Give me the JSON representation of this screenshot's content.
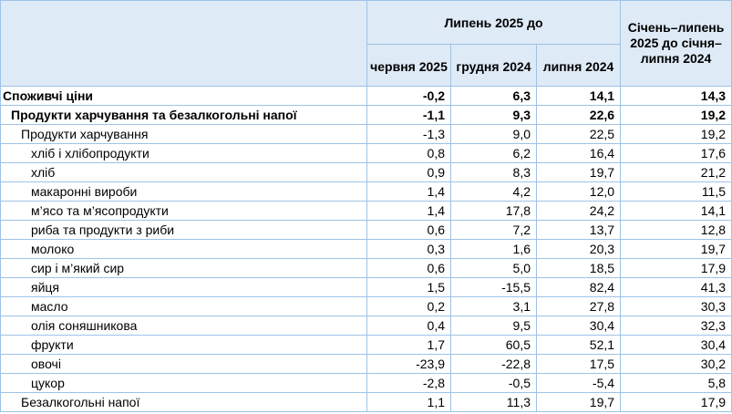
{
  "header": {
    "group_label": "Липень 2025 до",
    "ytd_label": "Січень–липень 2025 до січня–липня 2024",
    "col_june": "червня 2025",
    "col_dec": "грудня 2024",
    "col_july": "липня 2024"
  },
  "rows": [
    {
      "label": "Споживчі ціни",
      "level": 0,
      "v": [
        "-0,2",
        "6,3",
        "14,1",
        "14,3"
      ]
    },
    {
      "label": "Продукти харчування та безалкогольні напої",
      "level": 1,
      "v": [
        "-1,1",
        "9,3",
        "22,6",
        "19,2"
      ]
    },
    {
      "label": "Продукти харчування",
      "level": 2,
      "v": [
        "-1,3",
        "9,0",
        "22,5",
        "19,2"
      ]
    },
    {
      "label": "хліб і хлібопродукти",
      "level": 3,
      "v": [
        "0,8",
        "6,2",
        "16,4",
        "17,6"
      ]
    },
    {
      "label": "хліб",
      "level": 3,
      "v": [
        "0,9",
        "8,3",
        "19,7",
        "21,2"
      ]
    },
    {
      "label": "макаронні вироби",
      "level": 3,
      "v": [
        "1,4",
        "4,2",
        "12,0",
        "11,5"
      ]
    },
    {
      "label": "м’ясо та м’ясопродукти",
      "level": 3,
      "v": [
        "1,4",
        "17,8",
        "24,2",
        "14,1"
      ]
    },
    {
      "label": "риба та продукти з риби",
      "level": 3,
      "v": [
        "0,6",
        "7,2",
        "13,7",
        "12,8"
      ]
    },
    {
      "label": "молоко",
      "level": 3,
      "v": [
        "0,3",
        "1,6",
        "20,3",
        "19,7"
      ]
    },
    {
      "label": "сир і м’який сир",
      "level": 3,
      "v": [
        "0,6",
        "5,0",
        "18,5",
        "17,9"
      ]
    },
    {
      "label": "яйця",
      "level": 3,
      "v": [
        "1,5",
        "-15,5",
        "82,4",
        "41,3"
      ]
    },
    {
      "label": "масло",
      "level": 3,
      "v": [
        "0,2",
        "3,1",
        "27,8",
        "30,3"
      ]
    },
    {
      "label": "олія соняшникова",
      "level": 3,
      "v": [
        "0,4",
        "9,5",
        "30,4",
        "32,3"
      ]
    },
    {
      "label": "фрукти",
      "level": 3,
      "v": [
        "1,7",
        "60,5",
        "52,1",
        "30,4"
      ]
    },
    {
      "label": "овочі",
      "level": 3,
      "v": [
        "-23,9",
        "-22,8",
        "17,5",
        "30,2"
      ]
    },
    {
      "label": "цукор",
      "level": 3,
      "v": [
        "-2,8",
        "-0,5",
        "-5,4",
        "5,8"
      ]
    },
    {
      "label": "Безалкогольні напої",
      "level": 2,
      "v": [
        "1,1",
        "11,3",
        "19,7",
        "17,9"
      ]
    }
  ]
}
